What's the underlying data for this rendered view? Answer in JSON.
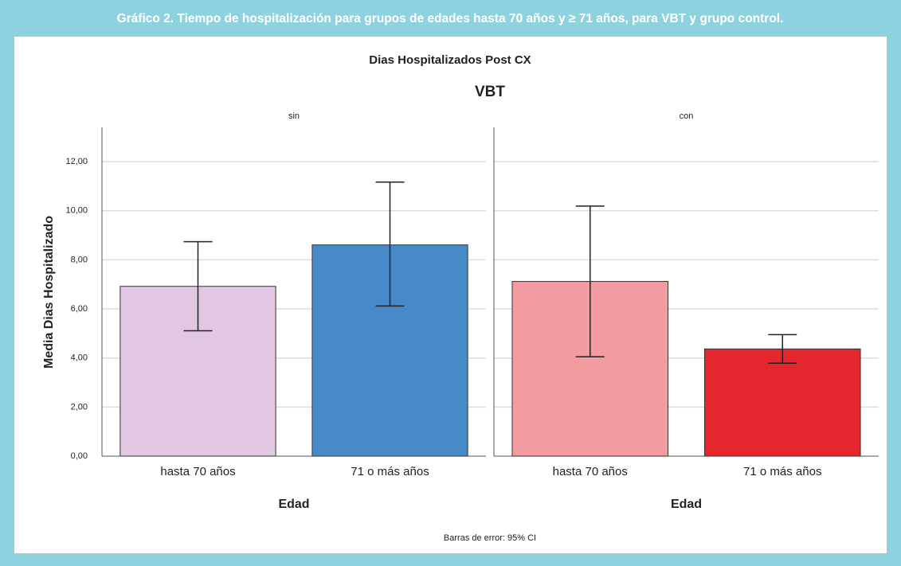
{
  "caption": "Gráfico 2. Tiempo de hospitalización para grupos de edades hasta 70 años y ≥ 71 años, para VBT y grupo control.",
  "chart_data": {
    "type": "bar",
    "title": "Dias Hospitalizados Post CX",
    "subtitle": "VBT",
    "ylabel": "Media Dias Hospitalizado",
    "xlabel": "Edad",
    "note": "Barras de error: 95% CI",
    "categories": [
      "hasta 70 años",
      "71 o más años"
    ],
    "ylim": [
      0,
      13.4
    ],
    "yticks": [
      {
        "value": 0,
        "label": "0,00"
      },
      {
        "value": 2,
        "label": "2,00"
      },
      {
        "value": 4,
        "label": "4,00"
      },
      {
        "value": 6,
        "label": "6,00"
      },
      {
        "value": 8,
        "label": "8,00"
      },
      {
        "value": 10,
        "label": "10,00"
      },
      {
        "value": 12,
        "label": "12,00"
      }
    ],
    "grid": true,
    "panels": [
      {
        "name": "sin",
        "colors": [
          "#e2c7e3",
          "#468ac8"
        ],
        "values": [
          6.92,
          8.61
        ],
        "ci_low": [
          5.11,
          6.12
        ],
        "ci_high": [
          8.74,
          11.17
        ]
      },
      {
        "name": "con",
        "colors": [
          "#f29ba1",
          "#e5262c"
        ],
        "values": [
          7.12,
          4.37
        ],
        "ci_low": [
          4.05,
          3.79
        ],
        "ci_high": [
          10.19,
          4.95
        ]
      }
    ]
  }
}
